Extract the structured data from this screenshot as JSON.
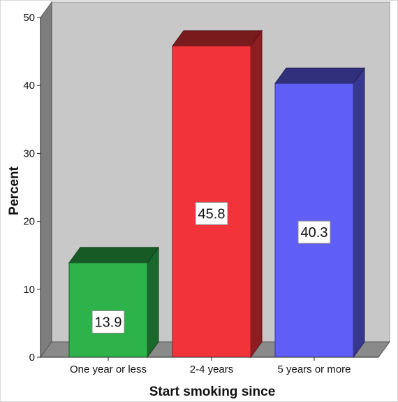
{
  "chart_data": {
    "type": "bar",
    "title": "",
    "xlabel": "Start smoking since",
    "ylabel": "Percent",
    "categories": [
      "One year or less",
      "2-4 years",
      "5 years or more"
    ],
    "values": [
      13.9,
      45.8,
      40.3
    ],
    "value_labels": [
      "13.9",
      "45.8",
      "40.3"
    ],
    "bar_colors": [
      "#2DB34A",
      "#F2333A",
      "#5F5FF7"
    ],
    "ylim": [
      0,
      50
    ],
    "yticks": [
      0,
      10,
      20,
      30,
      40,
      50
    ],
    "ytick_labels": [
      "0",
      "10",
      "20",
      "30",
      "40",
      "50"
    ],
    "grid": false,
    "style": "3d",
    "background_color": "#C8C8C8"
  }
}
